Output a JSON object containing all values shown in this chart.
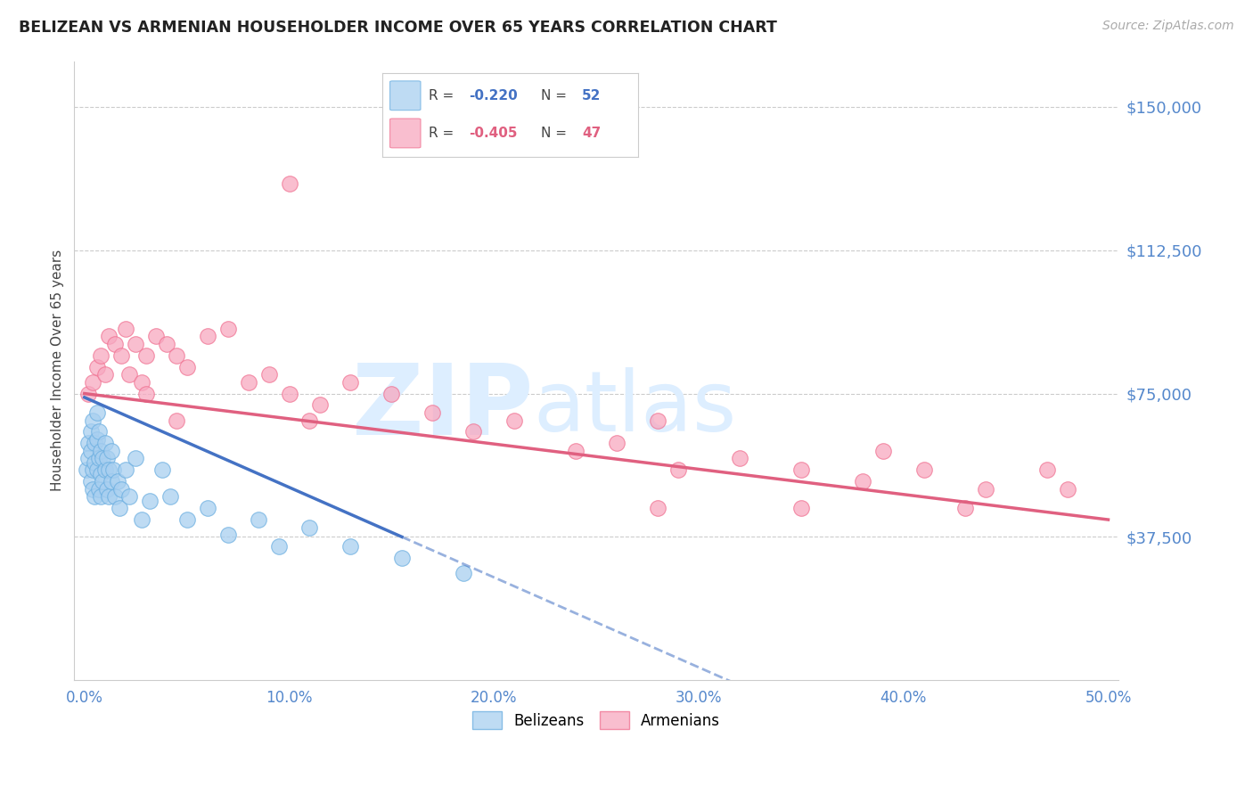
{
  "title": "BELIZEAN VS ARMENIAN HOUSEHOLDER INCOME OVER 65 YEARS CORRELATION CHART",
  "source": "Source: ZipAtlas.com",
  "ylabel": "Householder Income Over 65 years",
  "xlabel_ticks": [
    "0.0%",
    "10.0%",
    "20.0%",
    "30.0%",
    "40.0%",
    "50.0%"
  ],
  "xlabel_vals": [
    0.0,
    0.1,
    0.2,
    0.3,
    0.4,
    0.5
  ],
  "ytick_labels": [
    "$37,500",
    "$75,000",
    "$112,500",
    "$150,000"
  ],
  "ytick_vals": [
    37500,
    75000,
    112500,
    150000
  ],
  "xlim": [
    -0.005,
    0.505
  ],
  "ylim": [
    0,
    162000
  ],
  "belizean_R": -0.22,
  "belizean_N": 52,
  "armenian_R": -0.405,
  "armenian_N": 47,
  "belizean_color": "#a8cff0",
  "armenian_color": "#f7a8c0",
  "belizean_edge_color": "#6aaee0",
  "armenian_edge_color": "#f07090",
  "belizean_line_color": "#4472c4",
  "armenian_line_color": "#e06080",
  "watermark_zip": "ZIP",
  "watermark_atlas": "atlas",
  "watermark_color": "#ddeeff",
  "bel_line_x0": 0.0,
  "bel_line_y0": 74000,
  "bel_line_x1": 0.155,
  "bel_line_y1": 37500,
  "arm_line_x0": 0.0,
  "arm_line_y0": 75000,
  "arm_line_x1": 0.5,
  "arm_line_y1": 42000,
  "belizean_x": [
    0.001,
    0.002,
    0.002,
    0.003,
    0.003,
    0.003,
    0.004,
    0.004,
    0.004,
    0.005,
    0.005,
    0.005,
    0.006,
    0.006,
    0.006,
    0.007,
    0.007,
    0.007,
    0.008,
    0.008,
    0.008,
    0.009,
    0.009,
    0.01,
    0.01,
    0.011,
    0.011,
    0.012,
    0.012,
    0.013,
    0.013,
    0.014,
    0.015,
    0.016,
    0.017,
    0.018,
    0.02,
    0.022,
    0.025,
    0.028,
    0.032,
    0.038,
    0.042,
    0.05,
    0.06,
    0.07,
    0.085,
    0.095,
    0.11,
    0.13,
    0.155,
    0.185
  ],
  "belizean_y": [
    55000,
    62000,
    58000,
    65000,
    60000,
    52000,
    68000,
    55000,
    50000,
    62000,
    57000,
    48000,
    70000,
    63000,
    55000,
    65000,
    58000,
    50000,
    60000,
    54000,
    48000,
    58000,
    52000,
    62000,
    55000,
    58000,
    50000,
    55000,
    48000,
    60000,
    52000,
    55000,
    48000,
    52000,
    45000,
    50000,
    55000,
    48000,
    58000,
    42000,
    47000,
    55000,
    48000,
    42000,
    45000,
    38000,
    42000,
    35000,
    40000,
    35000,
    32000,
    28000
  ],
  "armenian_x": [
    0.002,
    0.004,
    0.006,
    0.008,
    0.01,
    0.012,
    0.015,
    0.018,
    0.02,
    0.022,
    0.025,
    0.028,
    0.03,
    0.035,
    0.04,
    0.045,
    0.05,
    0.06,
    0.07,
    0.08,
    0.09,
    0.1,
    0.115,
    0.13,
    0.15,
    0.17,
    0.19,
    0.21,
    0.24,
    0.26,
    0.29,
    0.32,
    0.35,
    0.38,
    0.41,
    0.44,
    0.47,
    0.03,
    0.045,
    0.11,
    0.28,
    0.35,
    0.39,
    0.43,
    0.28,
    0.48,
    0.1
  ],
  "armenian_y": [
    75000,
    78000,
    82000,
    85000,
    80000,
    90000,
    88000,
    85000,
    92000,
    80000,
    88000,
    78000,
    85000,
    90000,
    88000,
    85000,
    82000,
    90000,
    92000,
    78000,
    80000,
    75000,
    72000,
    78000,
    75000,
    70000,
    65000,
    68000,
    60000,
    62000,
    55000,
    58000,
    55000,
    52000,
    55000,
    50000,
    55000,
    75000,
    68000,
    68000,
    68000,
    45000,
    60000,
    45000,
    45000,
    50000,
    130000
  ]
}
